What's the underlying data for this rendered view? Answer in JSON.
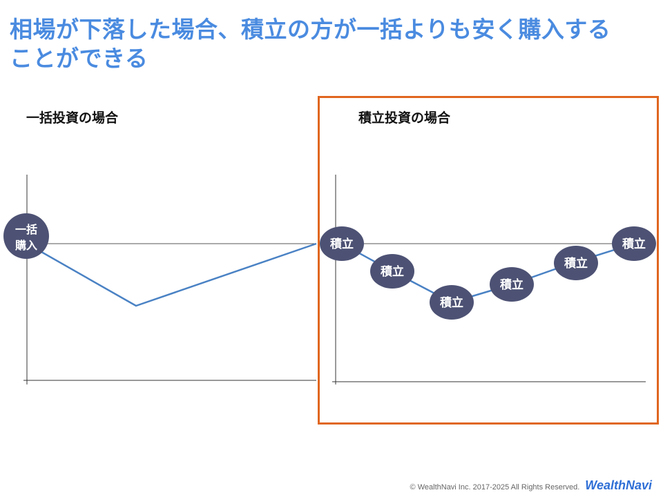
{
  "title": {
    "line1": "相場が下落した場合、積立の方が一括よりも安く購入する",
    "line2": "ことができる"
  },
  "lump_sum": {
    "heading": "一括投資の場合",
    "marker_line1": "一括",
    "marker_line2": "購入"
  },
  "accumulation": {
    "heading": "積立投資の場合",
    "marker_label": "積立"
  },
  "colors": {
    "title": "#4a8be0",
    "line": "#4a82c4",
    "marker": "#4d5274",
    "highlight": "#e0661f",
    "axis": "#333333"
  },
  "footer": {
    "copyright": "© WealthNavi Inc. 2017-2025 All Rights Reserved.",
    "brand": "WealthNavi"
  }
}
